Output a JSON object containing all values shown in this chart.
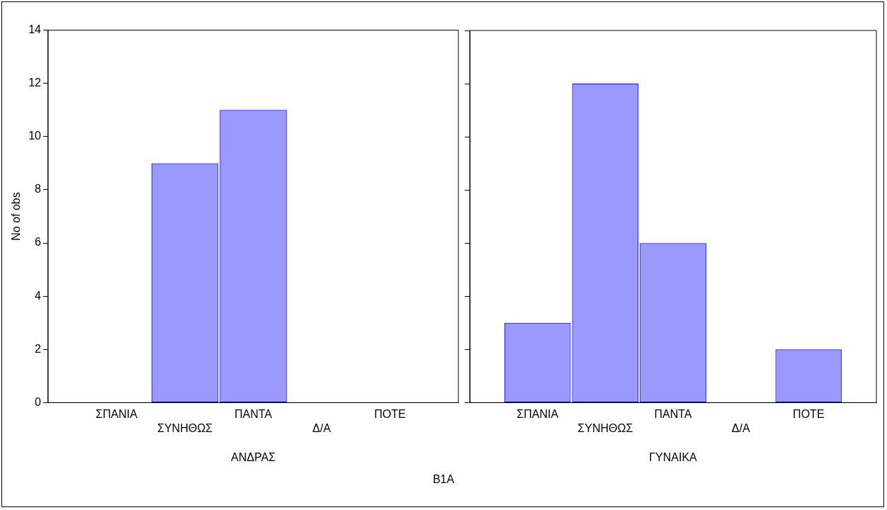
{
  "chart_data": [
    {
      "type": "bar",
      "xlabel": "ΑΝΔΡΑΣ",
      "ylabel": "No of obs",
      "categories": [
        "ΣΠΑΝΙΑ",
        "ΣΥΝΗΘΩΣ",
        "ΠΑΝΤΑ",
        "Δ/Α",
        "ΠΟΤΕ"
      ],
      "values": [
        0,
        9,
        11,
        0,
        0
      ],
      "color": "#0000ff",
      "ylim": [
        0,
        14
      ],
      "yticks": [
        0,
        2,
        4,
        6,
        8,
        10,
        12,
        14
      ],
      "grid": false,
      "legend": false
    },
    {
      "type": "bar",
      "xlabel": "ΓΥΝΑΙΚΑ",
      "categories": [
        "ΣΠΑΝΙΑ",
        "ΣΥΝΗΘΩΣ",
        "ΠΑΝΤΑ",
        "Δ/Α",
        "ΠΟΤΕ"
      ],
      "values": [
        3,
        12,
        6,
        0,
        2
      ],
      "color": "#0000ff",
      "ylim": [
        0,
        14
      ],
      "yticks": [
        0,
        2,
        4,
        6,
        8,
        10,
        12,
        14
      ],
      "grid": false,
      "legend": false,
      "tick_labels": "x",
      "annotations": [
        "B1A"
      ]
    }
  ]
}
